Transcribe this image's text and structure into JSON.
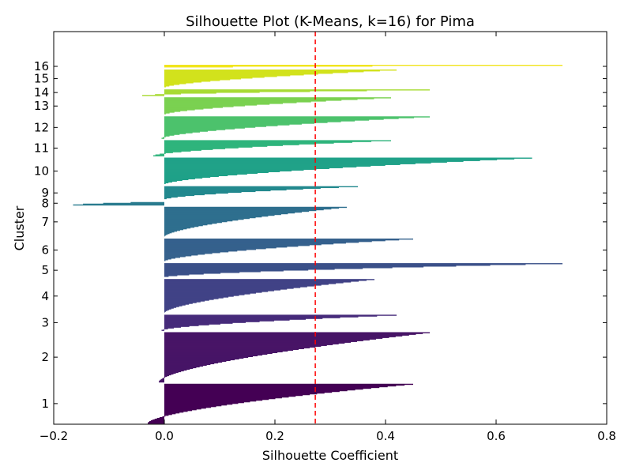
{
  "chart_data": {
    "type": "silhouette",
    "title": "Silhouette Plot (K-Means, k=16) for Pima",
    "xlabel": "Silhouette Coefficient",
    "ylabel": "Cluster",
    "xlim": [
      -0.2,
      0.8
    ],
    "xticks": [
      -0.2,
      0.0,
      0.2,
      0.4,
      0.6,
      0.8
    ],
    "xtick_labels": [
      "−0.2",
      "0.0",
      "0.2",
      "0.4",
      "0.6",
      "0.8"
    ],
    "mean_silhouette": 0.273,
    "mean_line_color": "#ff0000",
    "clusters": [
      {
        "label": "1",
        "color": "#440154",
        "min": -0.03,
        "max": 0.45,
        "n_samples": 50
      },
      {
        "label": "2",
        "color": "#471466",
        "min": -0.01,
        "max": 0.48,
        "n_samples": 63
      },
      {
        "label": "3",
        "color": "#462b7a",
        "min": -0.005,
        "max": 0.42,
        "n_samples": 20
      },
      {
        "label": "4",
        "color": "#414286",
        "min": 0.0,
        "max": 0.38,
        "n_samples": 43
      },
      {
        "label": "5",
        "color": "#3b5089",
        "min": 0.0,
        "max": 0.72,
        "n_samples": 18
      },
      {
        "label": "6",
        "color": "#35618d",
        "min": 0.0,
        "max": 0.45,
        "n_samples": 29
      },
      {
        "label": "7",
        "color": "#2e6f8e",
        "min": 0.0,
        "max": 0.33,
        "n_samples": 38
      },
      {
        "label": "8",
        "color": "#297b8e",
        "min": -0.165,
        "max": 0.0,
        "n_samples": 5
      },
      {
        "label": "9",
        "color": "#23898e",
        "min": 0.0,
        "max": 0.35,
        "n_samples": 17
      },
      {
        "label": "10",
        "color": "#1fa188",
        "min": 0.0,
        "max": 0.665,
        "n_samples": 34
      },
      {
        "label": "11",
        "color": "#2fb47c",
        "min": -0.02,
        "max": 0.41,
        "n_samples": 20
      },
      {
        "label": "12",
        "color": "#4cc26c",
        "min": -0.005,
        "max": 0.48,
        "n_samples": 28
      },
      {
        "label": "13",
        "color": "#7ad151",
        "min": 0.0,
        "max": 0.41,
        "n_samples": 22
      },
      {
        "label": "14",
        "color": "#a8db34",
        "min": -0.04,
        "max": 0.48,
        "n_samples": 8
      },
      {
        "label": "15",
        "color": "#d2e21b",
        "min": 0.0,
        "max": 0.42,
        "n_samples": 23
      },
      {
        "label": "16",
        "color": "#f1e51d",
        "min": 0.0,
        "max": 0.72,
        "n_samples": 4
      }
    ]
  }
}
